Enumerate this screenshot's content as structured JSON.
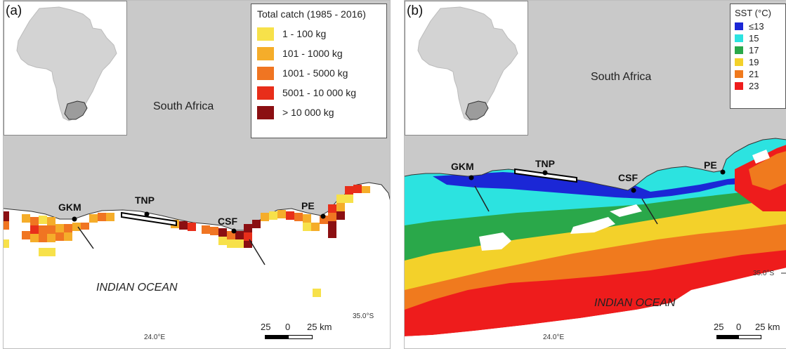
{
  "colors": {
    "land": "#c9c9c9",
    "inset_africa": "#d3d3d3",
    "catch_1": "#f7e14a",
    "catch_2": "#f5ad2a",
    "catch_3": "#f07522",
    "catch_4": "#e82e1a",
    "catch_5": "#8b0f12",
    "sst_13": "#1b27d6",
    "sst_15": "#2ce3e0",
    "sst_17": "#2aa84a",
    "sst_19": "#f3d12a",
    "sst_21": "#f07a1e",
    "sst_23": "#ee1c1c"
  },
  "panel_a": {
    "letter": "(a)",
    "country": "South Africa",
    "ocean": "INDIAN OCEAN",
    "lat": "35.0°S",
    "lon": "24.0°E",
    "sites": {
      "gkm": "GKM",
      "tnp": "TNP",
      "csf": "CSF",
      "pe": "PE"
    },
    "legend": {
      "title": "Total catch (1985 - 2016)",
      "items": [
        {
          "label": "1 - 100 kg",
          "color": "#f7e14a"
        },
        {
          "label": "101 - 1000 kg",
          "color": "#f5ad2a"
        },
        {
          "label": "1001 - 5000 kg",
          "color": "#f07522"
        },
        {
          "label": "5001 - 10 000 kg",
          "color": "#e82e1a"
        },
        {
          "label": "> 10 000 kg",
          "color": "#8b0f12"
        }
      ]
    },
    "scale": {
      "left": "25",
      "mid": "0",
      "right": "25 km"
    }
  },
  "panel_b": {
    "letter": "(b)",
    "country": "South Africa",
    "ocean": "INDIAN OCEAN",
    "lat": "35.0°S",
    "lon": "24.0°E",
    "sites": {
      "gkm": "GKM",
      "tnp": "TNP",
      "csf": "CSF",
      "pe": "PE"
    },
    "legend": {
      "title": "SST (°C)",
      "items": [
        {
          "label": "≤13",
          "color": "#1b27d6"
        },
        {
          "label": "15",
          "color": "#2ce3e0"
        },
        {
          "label": "17",
          "color": "#2aa84a"
        },
        {
          "label": "19",
          "color": "#f3d12a"
        },
        {
          "label": "21",
          "color": "#f07a1e"
        },
        {
          "label": "23",
          "color": "#ee1c1c"
        }
      ]
    },
    "scale": {
      "left": "25",
      "mid": "0",
      "right": "25 km"
    }
  }
}
